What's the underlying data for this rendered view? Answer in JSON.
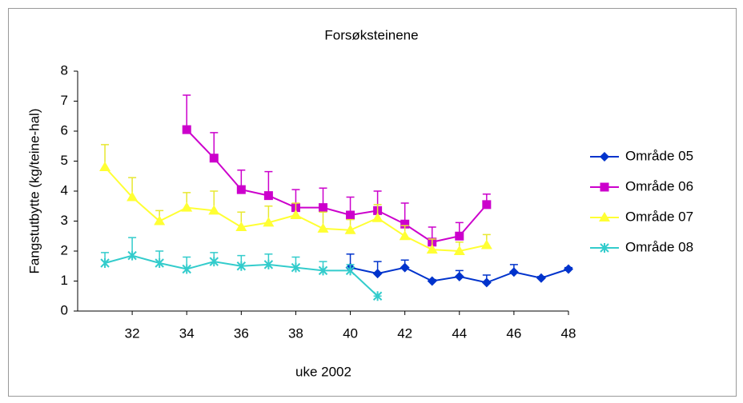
{
  "chart_data": {
    "type": "line",
    "title": "Forsøksteinene",
    "x_label": "uke 2002",
    "y_label": "Fangstutbytte (kg/teine-hal)",
    "xlim": [
      30,
      48
    ],
    "xticks": [
      32,
      34,
      36,
      38,
      40,
      42,
      44,
      46,
      48
    ],
    "ylim": [
      0,
      8
    ],
    "yticks": [
      0,
      1,
      2,
      3,
      4,
      5,
      6,
      7,
      8
    ],
    "legend": "right",
    "series": [
      {
        "name": "Område 05",
        "color": "#0033cc",
        "marker": "diamond",
        "x": [
          40,
          41,
          42,
          43,
          44,
          45,
          46,
          47,
          48
        ],
        "values": [
          1.45,
          1.25,
          1.45,
          1.0,
          1.15,
          0.95,
          1.3,
          1.1,
          1.4
        ],
        "errors": [
          0.45,
          0.4,
          0.25,
          0.05,
          0.2,
          0.25,
          0.25,
          0.05,
          0.05
        ]
      },
      {
        "name": "Område 06",
        "color": "#cc00cc",
        "marker": "square",
        "x": [
          34,
          35,
          36,
          37,
          38,
          39,
          40,
          41,
          42,
          43,
          44,
          45
        ],
        "values": [
          6.05,
          5.1,
          4.05,
          3.85,
          3.45,
          3.45,
          3.2,
          3.35,
          2.9,
          2.3,
          2.5,
          3.55
        ],
        "errors": [
          1.15,
          0.85,
          0.65,
          0.8,
          0.6,
          0.65,
          0.6,
          0.65,
          0.7,
          0.5,
          0.45,
          0.35
        ]
      },
      {
        "name": "Område 07",
        "color": "#ffff33",
        "marker": "triangle",
        "x": [
          31,
          32,
          33,
          34,
          35,
          36,
          37,
          38,
          39,
          40,
          41,
          42,
          43,
          44,
          45
        ],
        "values": [
          4.8,
          3.8,
          3.0,
          3.45,
          3.35,
          2.8,
          2.95,
          3.2,
          2.75,
          2.7,
          3.1,
          2.5,
          2.05,
          2.0,
          2.2
        ],
        "errors": [
          0.75,
          0.65,
          0.35,
          0.5,
          0.65,
          0.5,
          0.55,
          0.4,
          0.55,
          0.35,
          0.45,
          0.35,
          0.35,
          0.3,
          0.35
        ]
      },
      {
        "name": "Område 08",
        "color": "#33cccc",
        "marker": "star",
        "x": [
          31,
          32,
          33,
          34,
          35,
          36,
          37,
          38,
          39,
          40,
          41
        ],
        "values": [
          1.6,
          1.85,
          1.6,
          1.4,
          1.65,
          1.5,
          1.55,
          1.45,
          1.35,
          1.35,
          0.5
        ],
        "errors": [
          0.35,
          0.6,
          0.4,
          0.4,
          0.3,
          0.35,
          0.35,
          0.35,
          0.3,
          0.2,
          0
        ]
      }
    ]
  }
}
